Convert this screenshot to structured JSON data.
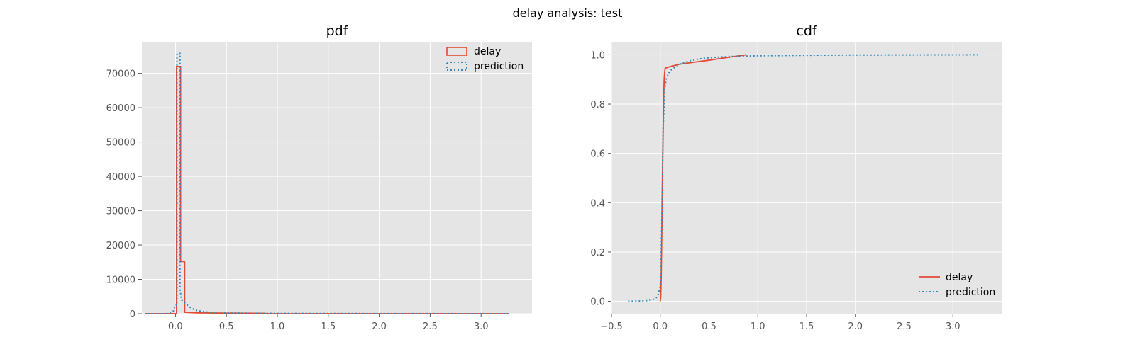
{
  "suptitle": "delay analysis: test",
  "colors": {
    "axes_bg": "#E5E5E5",
    "grid": "#FFFFFF",
    "tick_text": "#555555",
    "delay": "#E24A33",
    "prediction": "#348ABD"
  },
  "chart_data": [
    {
      "type": "histogram-step",
      "title": "pdf",
      "xlim": [
        -0.33,
        3.5
      ],
      "ylim": [
        0,
        79000
      ],
      "xticks": [
        0.0,
        0.5,
        1.0,
        1.5,
        2.0,
        2.5,
        3.0
      ],
      "xtick_labels": [
        "0.0",
        "0.5",
        "1.0",
        "1.5",
        "2.0",
        "2.5",
        "3.0"
      ],
      "yticks": [
        0,
        10000,
        20000,
        30000,
        40000,
        50000,
        60000,
        70000
      ],
      "ytick_labels": [
        "0",
        "10000",
        "20000",
        "30000",
        "40000",
        "50000",
        "60000",
        "70000"
      ],
      "grid": true,
      "legend_position": "upper right",
      "series": [
        {
          "name": "delay",
          "style": "solid",
          "color": "#E24A33",
          "x": [
            -0.3,
            0.01,
            0.01,
            0.05,
            0.05,
            0.09,
            0.09,
            0.2,
            0.5,
            0.88,
            0.88,
            3.27
          ],
          "y": [
            0,
            0,
            72000,
            72000,
            15200,
            15200,
            400,
            250,
            150,
            100,
            0,
            0
          ]
        },
        {
          "name": "prediction",
          "style": "dotted",
          "color": "#348ABD",
          "x": [
            -0.3,
            -0.1,
            -0.05,
            -0.02,
            0.0,
            0.015,
            0.015,
            0.045,
            0.045,
            0.06,
            0.08,
            0.1,
            0.12,
            0.15,
            0.2,
            0.25,
            0.3,
            0.4,
            0.5,
            1.0,
            2.0,
            3.27
          ],
          "y": [
            0,
            0,
            200,
            800,
            2500,
            2500,
            75800,
            75800,
            7000,
            4000,
            3400,
            3000,
            2400,
            1700,
            1000,
            700,
            500,
            300,
            200,
            80,
            30,
            0
          ]
        }
      ]
    },
    {
      "type": "line",
      "title": "cdf",
      "xlim": [
        -0.5,
        3.5
      ],
      "ylim": [
        -0.05,
        1.05
      ],
      "xticks": [
        -0.5,
        0.0,
        0.5,
        1.0,
        1.5,
        2.0,
        2.5,
        3.0
      ],
      "xtick_labels": [
        "−0.5",
        "0.0",
        "0.5",
        "1.0",
        "1.5",
        "2.0",
        "2.5",
        "3.0"
      ],
      "yticks": [
        0.0,
        0.2,
        0.4,
        0.6,
        0.8,
        1.0
      ],
      "ytick_labels": [
        "0.0",
        "0.2",
        "0.4",
        "0.6",
        "0.8",
        "1.0"
      ],
      "grid": true,
      "legend_position": "lower right",
      "series": [
        {
          "name": "delay",
          "style": "solid",
          "color": "#E24A33",
          "x": [
            0.0,
            0.005,
            0.01,
            0.015,
            0.02,
            0.025,
            0.03,
            0.035,
            0.04,
            0.045,
            0.05,
            0.06,
            0.07,
            0.1,
            0.2,
            0.5,
            0.88
          ],
          "y": [
            0.0,
            0.02,
            0.1,
            0.25,
            0.42,
            0.58,
            0.72,
            0.83,
            0.9,
            0.93,
            0.945,
            0.947,
            0.948,
            0.952,
            0.962,
            0.978,
            1.0
          ]
        },
        {
          "name": "prediction",
          "style": "dotted",
          "color": "#348ABD",
          "x": [
            -0.33,
            -0.15,
            -0.08,
            -0.04,
            -0.02,
            0.0,
            0.01,
            0.02,
            0.03,
            0.045,
            0.06,
            0.08,
            0.1,
            0.15,
            0.2,
            0.3,
            0.4,
            0.5,
            0.7,
            1.0,
            1.5,
            2.0,
            3.27
          ],
          "y": [
            0.0,
            0.002,
            0.006,
            0.015,
            0.03,
            0.06,
            0.2,
            0.45,
            0.7,
            0.86,
            0.9,
            0.92,
            0.935,
            0.95,
            0.962,
            0.975,
            0.983,
            0.988,
            0.993,
            0.996,
            0.998,
            0.999,
            1.0
          ]
        }
      ]
    }
  ]
}
